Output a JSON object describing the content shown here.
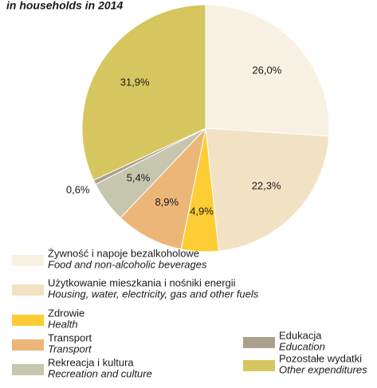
{
  "chart_data": {
    "type": "pie",
    "title": "in households in 2014",
    "categories": [
      "Żywność i napoje bezalkoholowe",
      "Użytkowanie mieszkania i nośniki energii",
      "Zdrowie",
      "Transport",
      "Rekreacja i kultura",
      "Edukacja",
      "Pozostałe wydatki"
    ],
    "categories_en": [
      "Food and non-alcoholic beverages",
      "Housing, water, electricity, gas and other fuels",
      "Health",
      "Transport",
      "Recreation and culture",
      "Education",
      "Other expenditures"
    ],
    "values": [
      26.0,
      22.3,
      4.9,
      8.9,
      5.4,
      0.6,
      31.9
    ],
    "value_labels": [
      "26,0%",
      "22,3%",
      "4,9%",
      "8,9%",
      "5,4%",
      "0,6%",
      "31,9%"
    ],
    "colors": [
      "#f8f1e3",
      "#f1e2c3",
      "#fccd35",
      "#ebb678",
      "#c6c5ad",
      "#aaa18c",
      "#d5c65f"
    ]
  }
}
